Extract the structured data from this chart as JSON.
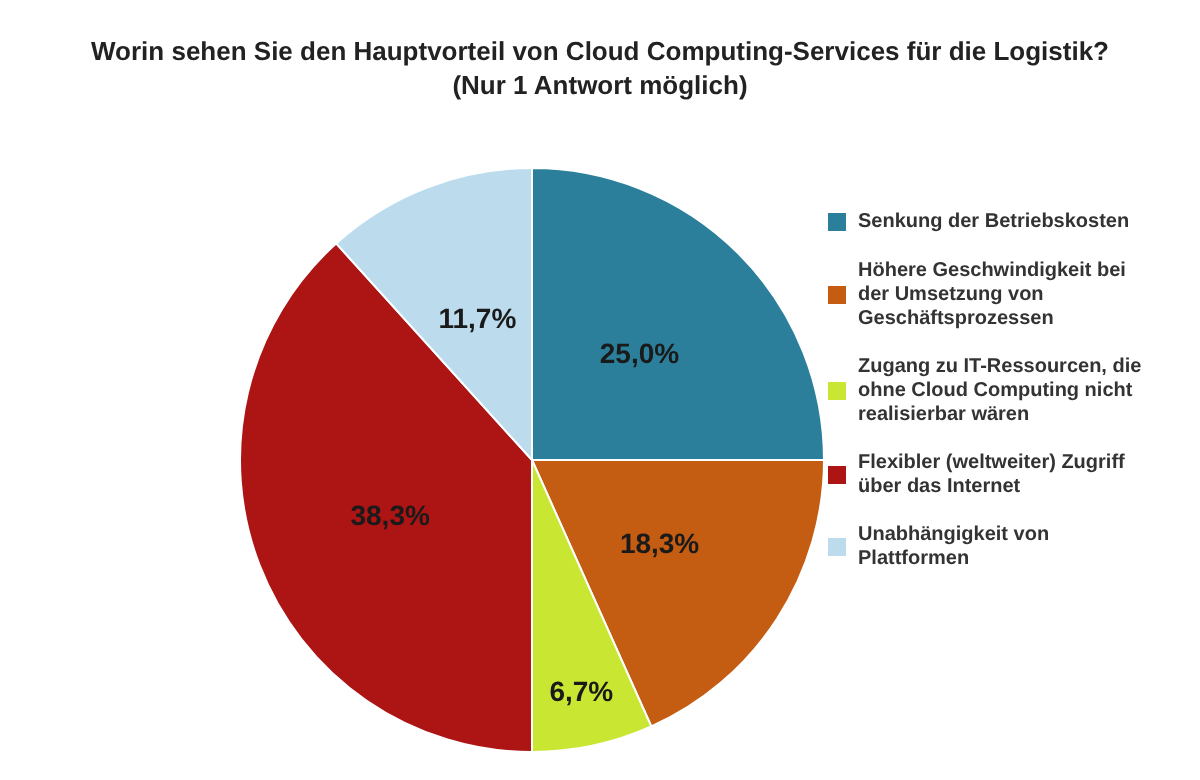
{
  "chart_data": {
    "type": "pie",
    "title": "Worin sehen Sie den Hauptvorteil von Cloud Computing-Services für die Logistik?",
    "subtitle": "(Nur 1 Antwort möglich)",
    "categories": [
      "Senkung der Betriebskosten",
      "Höhere Geschwindigkeit bei der Umsetzung von Geschäftsprozessen",
      "Zugang zu IT-Ressourcen, die ohne Cloud Computing nicht realisierbar wären",
      "Flexibler (weltweiter) Zugriff über das Internet",
      "Unabhängigkeit von Plattformen"
    ],
    "values": [
      25.0,
      18.3,
      6.7,
      38.3,
      11.7
    ],
    "value_labels": [
      "25,0%",
      "18,3%",
      "6,7%",
      "38,3%",
      "11,7%"
    ],
    "colors": [
      "#2b7f9b",
      "#c45c12",
      "#c8e632",
      "#ad1414",
      "#bcdcee"
    ],
    "legend": "right"
  }
}
